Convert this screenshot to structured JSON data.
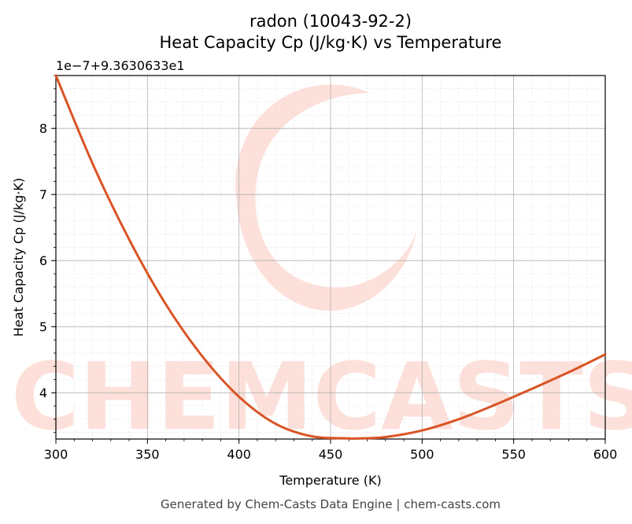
{
  "chart_data": {
    "type": "line",
    "title_line1": "radon (10043-92-2)",
    "title_line2": "Heat Capacity Cp (J/kg·K) vs Temperature",
    "xlabel": "Temperature (K)",
    "ylabel": "Heat Capacity Cp (J/kg·K)",
    "offset_label": "1e−7+9.3630633e1",
    "xlim": [
      300,
      600
    ],
    "ylim": [
      3.3,
      8.8
    ],
    "xticks": [
      "300",
      "350",
      "400",
      "450",
      "500",
      "550",
      "600"
    ],
    "yticks": [
      "4",
      "5",
      "6",
      "7",
      "8"
    ],
    "grid": true,
    "series": [
      {
        "color": "#d95425",
        "x": [
          300,
          320,
          340,
          360,
          380,
          400,
          420,
          440,
          460,
          466,
          480,
          500,
          520,
          540,
          560,
          580,
          600
        ],
        "y": [
          8.8,
          7.47,
          6.32,
          5.34,
          4.55,
          3.94,
          3.53,
          3.34,
          3.31,
          3.31,
          3.33,
          3.43,
          3.6,
          3.82,
          4.06,
          4.31,
          4.58
        ]
      }
    ]
  },
  "watermark": "CHEMCASTS",
  "footer": "Generated by Chem-Casts Data Engine | chem-casts.com"
}
